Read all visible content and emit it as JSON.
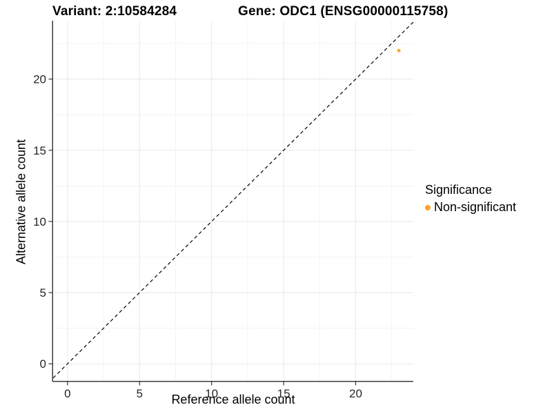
{
  "figure": {
    "title_left": "Variant: 2:10584284",
    "title_right": "Gene: ODC1 (ENSG00000115758)"
  },
  "chart_data": {
    "type": "scatter",
    "title": "Variant: 2:10584284 — Gene: ODC1 (ENSG00000115758)",
    "xlabel": "Reference allele count",
    "ylabel": "Alternative allele count",
    "xlim": [
      -1,
      24
    ],
    "ylim": [
      -1.2,
      24.1
    ],
    "x_major_ticks": [
      0,
      5,
      10,
      15,
      20
    ],
    "y_major_ticks": [
      0,
      5,
      10,
      15,
      20
    ],
    "x_minor_gridlines": [
      2.5,
      7.5,
      12.5,
      17.5,
      22.5
    ],
    "y_minor_gridlines": [
      2.5,
      7.5,
      12.5,
      17.5,
      22.5
    ],
    "grid": true,
    "series": [
      {
        "name": "Non-significant",
        "color": "#FAA32C",
        "points": [
          {
            "x": 23,
            "y": 22
          }
        ]
      }
    ],
    "identity_line": {
      "from": {
        "x": -1,
        "y": -1
      },
      "to": {
        "x": 24,
        "y": 24
      },
      "style": "dashed",
      "color": "#000000"
    },
    "legend": {
      "title": "Significance",
      "position": "right",
      "items": [
        {
          "label": "Non-significant",
          "color": "#FAA32C"
        }
      ]
    },
    "colors": {
      "grid_major": "#e8e8e8",
      "grid_minor": "#f3f3f3",
      "axis_line": "#3c3c3c",
      "tick_mark": "#333333",
      "tick_text": "#262626"
    }
  }
}
